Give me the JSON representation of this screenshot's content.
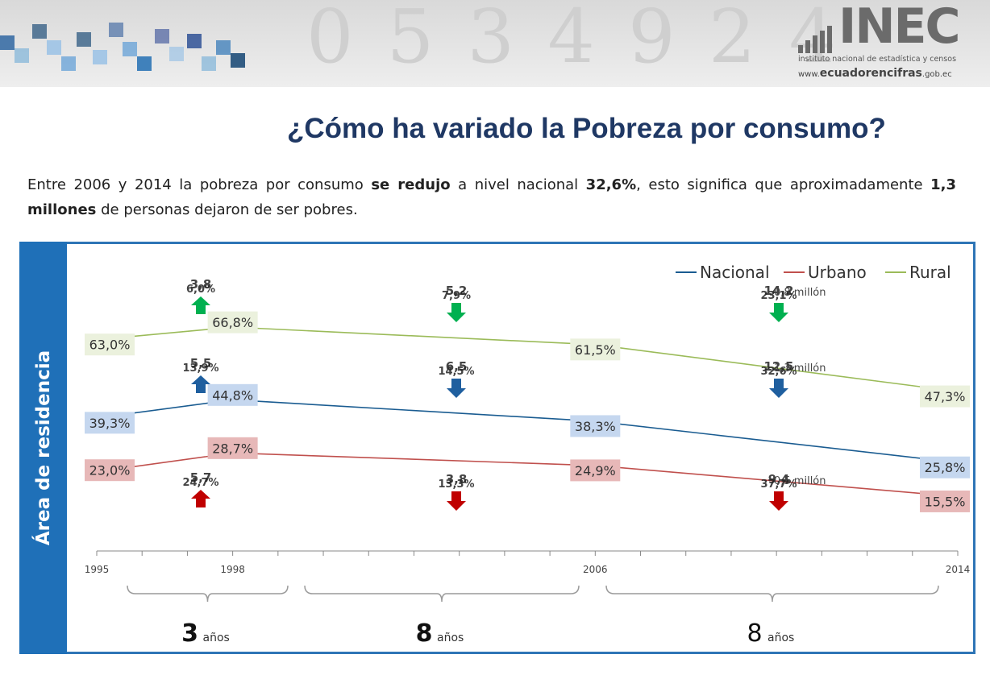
{
  "header": {
    "logo_text": "INEC",
    "logo_subtitle": "instituto nacional de estadística y censos",
    "logo_web_prefix": "www.",
    "logo_web_main": "ecuadorencifras",
    "logo_web_suffix": ".gob.ec"
  },
  "title": "¿Cómo ha variado la Pobreza por consumo?",
  "intro": {
    "p1": "Entre 2006 y 2014 la pobreza por consumo ",
    "b1": "se redujo",
    "p2": " a nivel nacional ",
    "b2": "32,6%",
    "p3": ", esto significa que aproximadamente ",
    "b3": "1,3 millones",
    "p4": " de personas dejaron de ser pobres."
  },
  "sidebar_label": "Área de residencia",
  "colors": {
    "nacional": "#1a5c91",
    "urbano": "#c0504d",
    "rural": "#9bbb59",
    "label_nacional_bg": "#c5d7ef",
    "label_urbano_bg": "#e7b8b8",
    "label_rural_bg": "#ebf1dd",
    "arrow_green": "#00b050",
    "arrow_blue": "#1f5f9f",
    "arrow_red": "#c00000",
    "sidebar": "#1f70b8"
  },
  "chart_data": {
    "type": "line",
    "x": [
      1995,
      1998,
      2006,
      2014
    ],
    "x_ticks": [
      "1995",
      "1998",
      "2006",
      "2014"
    ],
    "legend_position": "top-right",
    "grid": false,
    "series": [
      {
        "name": "Nacional",
        "values": [
          39.3,
          44.8,
          38.3,
          25.8
        ],
        "labels": [
          "39,3%",
          "44,8%",
          "38,3%",
          "25,8%"
        ]
      },
      {
        "name": "Urbano",
        "values": [
          23.0,
          28.7,
          24.9,
          15.5
        ],
        "labels": [
          "23,0%",
          "28,7%",
          "24,9%",
          "15,5%"
        ]
      },
      {
        "name": "Rural",
        "values": [
          63.0,
          66.8,
          61.5,
          47.3
        ],
        "labels": [
          "63,0%",
          "66,8%",
          "61,5%",
          "47,3%"
        ]
      }
    ],
    "annotations": [
      {
        "period": "1995-1998",
        "series": "Rural",
        "direction": "up",
        "texts": [
          "3,8",
          "6,0%"
        ]
      },
      {
        "period": "1995-1998",
        "series": "Nacional",
        "direction": "up",
        "texts": [
          "5,5",
          "13,9%"
        ]
      },
      {
        "period": "1995-1998",
        "series": "Urbano",
        "direction": "up",
        "texts": [
          "5,7",
          "24,7%"
        ]
      },
      {
        "period": "1998-2006",
        "series": "Rural",
        "direction": "down",
        "texts": [
          "5,2",
          "7,9%"
        ]
      },
      {
        "period": "1998-2006",
        "series": "Nacional",
        "direction": "down",
        "texts": [
          "6,5",
          "14,5%"
        ]
      },
      {
        "period": "1998-2006",
        "series": "Urbano",
        "direction": "down",
        "texts": [
          "3,8",
          "13,3%"
        ]
      },
      {
        "period": "2006-2014",
        "series": "Rural",
        "direction": "down",
        "texts": [
          "14,2",
          "23,1%"
        ],
        "extra": "0,8 millón"
      },
      {
        "period": "2006-2014",
        "series": "Nacional",
        "direction": "down",
        "texts": [
          "12,5",
          "32,6%"
        ],
        "extra": "1,3 millón"
      },
      {
        "period": "2006-2014",
        "series": "Urbano",
        "direction": "down",
        "texts": [
          "9,4",
          "37,7%"
        ],
        "extra": "0,5 millón"
      }
    ],
    "periods": [
      {
        "number": "3",
        "unit": "años"
      },
      {
        "number": "8",
        "unit": "años"
      },
      {
        "number": "8",
        "unit": "años"
      }
    ]
  }
}
